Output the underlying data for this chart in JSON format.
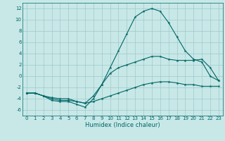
{
  "x": [
    0,
    1,
    2,
    3,
    4,
    5,
    6,
    7,
    8,
    9,
    10,
    11,
    12,
    13,
    14,
    15,
    16,
    17,
    18,
    19,
    20,
    21,
    22,
    23
  ],
  "line_bottom": [
    -3,
    -3,
    -3.5,
    -4,
    -4.3,
    -4.3,
    -4.5,
    -4.8,
    -4.5,
    -4.0,
    -3.5,
    -3.0,
    -2.5,
    -2.0,
    -1.5,
    -1.2,
    -1.0,
    -1.0,
    -1.2,
    -1.5,
    -1.5,
    -1.8,
    -1.8,
    -1.8
  ],
  "line_top": [
    -3,
    -3,
    -3.5,
    -4.3,
    -4.5,
    -4.5,
    -5.0,
    -5.5,
    -4.0,
    -1.5,
    1.5,
    4.5,
    7.5,
    10.5,
    11.5,
    12.0,
    11.5,
    9.5,
    7.0,
    4.5,
    3.0,
    2.5,
    0.0,
    -0.8
  ],
  "line_mid": [
    -3,
    -3,
    -3.5,
    -3.8,
    -4.0,
    -4.0,
    -4.5,
    -4.8,
    -3.5,
    -1.5,
    0.5,
    1.5,
    2.0,
    2.5,
    3.0,
    3.5,
    3.5,
    3.0,
    2.8,
    2.8,
    2.8,
    3.0,
    1.5,
    -0.8
  ],
  "xlabel": "Humidex (Indice chaleur)",
  "ylim": [
    -7,
    13
  ],
  "xlim": [
    -0.5,
    23.5
  ],
  "yticks": [
    -6,
    -4,
    -2,
    0,
    2,
    4,
    6,
    8,
    10,
    12
  ],
  "xticks": [
    0,
    1,
    2,
    3,
    4,
    5,
    6,
    7,
    8,
    9,
    10,
    11,
    12,
    13,
    14,
    15,
    16,
    17,
    18,
    19,
    20,
    21,
    22,
    23
  ],
  "line_color": "#006666",
  "bg_color": "#c8e8e8",
  "grid_color": "#a0c8c8",
  "marker": "*",
  "marker_size": 3,
  "linewidth": 0.8,
  "tick_fontsize": 5,
  "xlabel_fontsize": 6,
  "xlabel_color": "#006666"
}
